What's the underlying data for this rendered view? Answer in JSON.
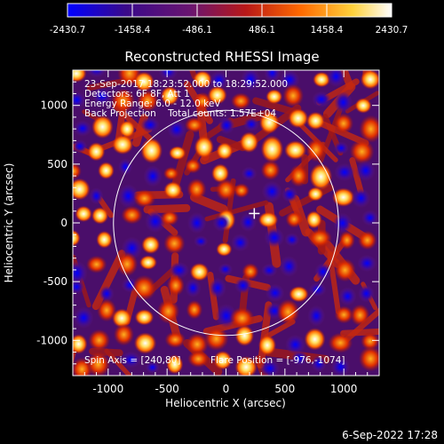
{
  "colorbar": {
    "ticks": [
      "-2430.7",
      "-1458.4",
      "-486.1",
      "486.1",
      "1458.4",
      "2430.7"
    ]
  },
  "title": "Reconstructed RHESSI Image",
  "annotations": {
    "time_range": "23-Sep-2017 18:23:52.000 to 18:29:52.000",
    "detectors": "Detectors: 6F 8F, Att 1",
    "energy_range": "Energy Range: 6.0 - 12.0 keV",
    "method_counts": "Back Projection    Total counts: 1.57E+04",
    "spin_axis": "Spin Axis = [240,80]",
    "flare_position": "Flare Position = [-976,-1074]"
  },
  "axes": {
    "xlabel": "Heliocentric X (arcsec)",
    "ylabel": "Heliocentric Y (arcsec)",
    "xticks": [
      "-1000",
      "-500",
      "0",
      "500",
      "1000"
    ],
    "yticks": [
      "1000",
      "500",
      "0",
      "-500",
      "-1000"
    ],
    "xtick_values": [
      -1000,
      -500,
      0,
      500,
      1000
    ],
    "ytick_values": [
      1000,
      500,
      0,
      -500,
      -1000
    ],
    "xlim": [
      -1300,
      1300
    ],
    "ylim": [
      -1300,
      1300
    ]
  },
  "image": {
    "solar_limb_radius_arcsec": 955,
    "cross_marker_arcsec": [
      240,
      80
    ],
    "colormap": [
      "#0000ff",
      "#4a0a7a",
      "#8a1f8a",
      "#cc2200",
      "#ff7a00",
      "#ffd23c",
      "#ffffff"
    ]
  },
  "footer": {
    "date": "6-Sep-2022 17:28"
  }
}
